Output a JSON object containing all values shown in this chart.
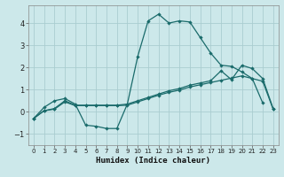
{
  "xlabel": "Humidex (Indice chaleur)",
  "xlim": [
    -0.5,
    23.5
  ],
  "ylim": [
    -1.5,
    4.8
  ],
  "yticks": [
    -1,
    0,
    1,
    2,
    3,
    4
  ],
  "xticks": [
    0,
    1,
    2,
    3,
    4,
    5,
    6,
    7,
    8,
    9,
    10,
    11,
    12,
    13,
    14,
    15,
    16,
    17,
    18,
    19,
    20,
    21,
    22,
    23
  ],
  "bg_color": "#cce8ea",
  "grid_color": "#aacdd0",
  "line_color": "#1a6b6b",
  "line1_x": [
    0,
    1,
    2,
    3,
    4,
    5,
    6,
    7,
    8,
    9,
    10,
    11,
    12,
    13,
    14,
    15,
    16,
    17,
    18,
    19,
    20,
    21,
    22
  ],
  "line1_y": [
    -0.3,
    0.2,
    0.5,
    0.6,
    0.35,
    -0.6,
    -0.65,
    -0.75,
    -0.75,
    0.35,
    2.5,
    4.1,
    4.4,
    4.0,
    4.1,
    4.05,
    3.35,
    2.65,
    2.1,
    2.05,
    1.8,
    1.5,
    0.4
  ],
  "line2_x": [
    0,
    1,
    2,
    3,
    4,
    5,
    6,
    7,
    8,
    9,
    10,
    11,
    12,
    13,
    14,
    15,
    16,
    17,
    18,
    19,
    20,
    21,
    22,
    23
  ],
  "line2_y": [
    -0.3,
    0.05,
    0.15,
    0.5,
    0.3,
    0.3,
    0.3,
    0.3,
    0.3,
    0.35,
    0.5,
    0.65,
    0.8,
    0.95,
    1.05,
    1.2,
    1.3,
    1.4,
    1.85,
    1.45,
    2.1,
    1.95,
    1.5,
    0.15
  ],
  "line3_x": [
    0,
    1,
    2,
    3,
    4,
    5,
    6,
    7,
    8,
    9,
    10,
    11,
    12,
    13,
    14,
    15,
    16,
    17,
    18,
    19,
    20,
    21,
    22,
    23
  ],
  "line3_y": [
    -0.3,
    0.05,
    0.12,
    0.45,
    0.28,
    0.28,
    0.28,
    0.28,
    0.28,
    0.3,
    0.45,
    0.6,
    0.75,
    0.88,
    0.98,
    1.12,
    1.22,
    1.32,
    1.42,
    1.52,
    1.62,
    1.5,
    1.38,
    0.12
  ]
}
